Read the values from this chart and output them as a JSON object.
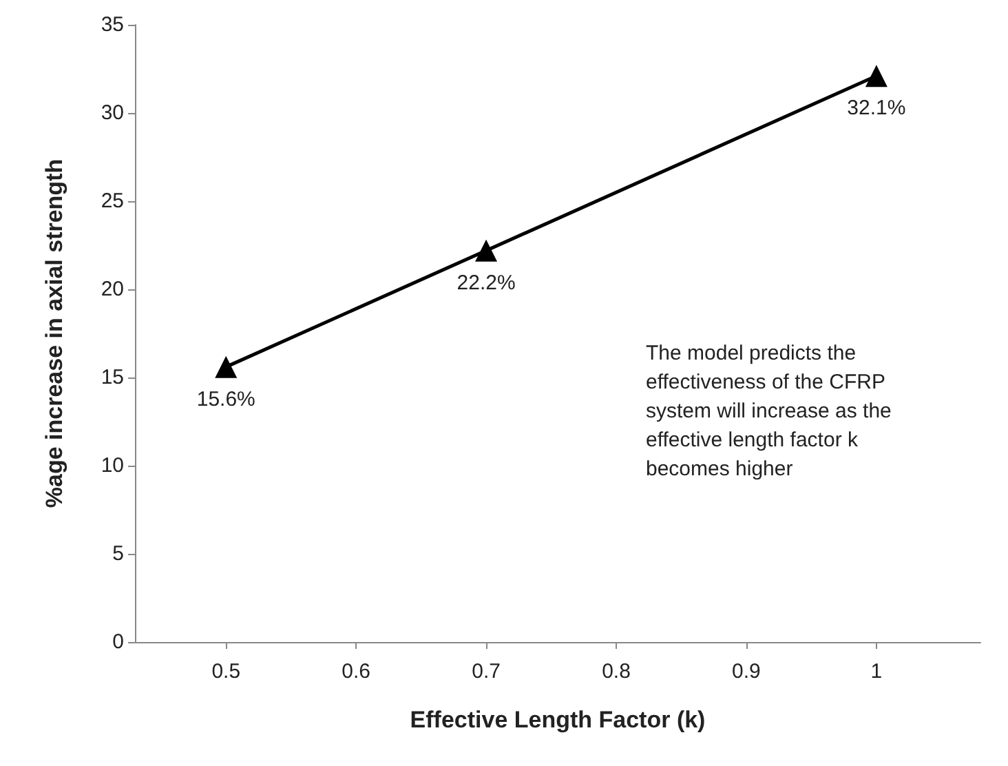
{
  "chart_data": {
    "type": "line",
    "xlabel": "Effective Length Factor (k)",
    "ylabel": "%age increase in axial strength",
    "x": [
      0.5,
      0.7,
      1
    ],
    "series": [
      {
        "color": "#000000",
        "values": [
          15.6,
          22.2,
          32.1
        ],
        "value_labels": [
          "15.6%",
          "22.2%",
          "32.1%"
        ]
      }
    ],
    "xlim": [
      0.43,
      1.08
    ],
    "xticks": [
      0.5,
      0.6,
      0.7,
      0.8,
      0.9,
      1
    ],
    "ylim": [
      0,
      35
    ],
    "yticks": [
      0,
      5,
      10,
      15,
      20,
      25,
      30,
      35
    ],
    "marker": "triangle",
    "line_style": "solid",
    "grid": false,
    "annotations": [
      "The model predicts the effectiveness of the CFRP system will increase as the effective length factor k becomes higher"
    ]
  }
}
